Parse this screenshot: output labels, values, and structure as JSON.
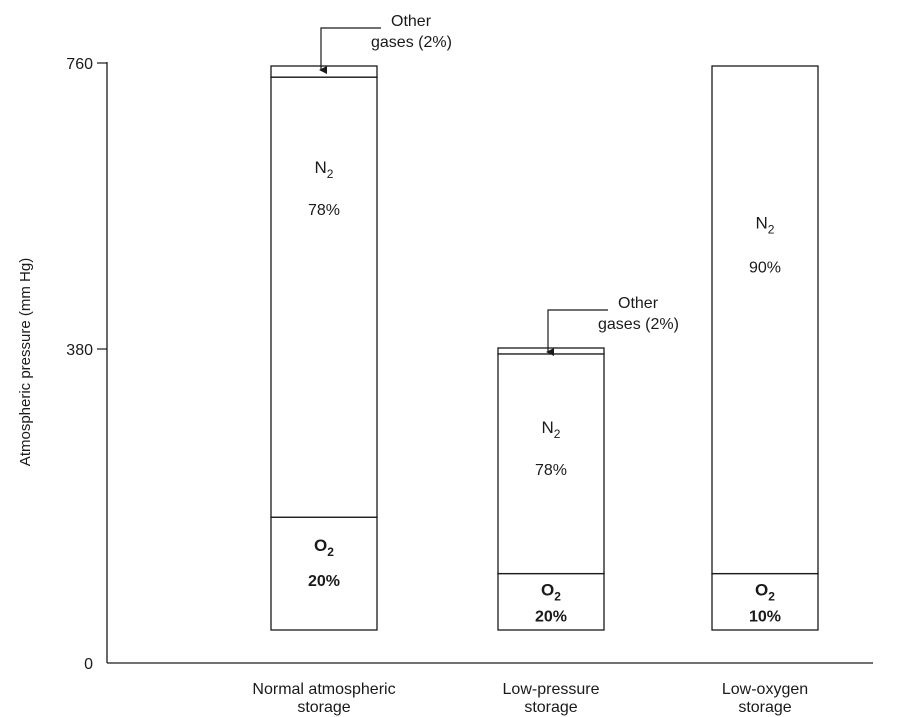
{
  "chart_data": {
    "type": "bar",
    "stacked": true,
    "ylabel": "Atmospheric pressure (mm Hg)",
    "xlabel": "",
    "ylim": [
      0,
      760
    ],
    "yticks": [
      "0",
      "380",
      "760"
    ],
    "grid": false,
    "categories": [
      [
        "Normal atmospheric",
        "storage"
      ],
      [
        "Low-pressure",
        "storage"
      ],
      [
        "Low-oxygen",
        "storage"
      ]
    ],
    "bars": [
      {
        "total": 760,
        "segments": [
          {
            "gas": "O",
            "sub": "2",
            "percent": "20%",
            "value": 152
          },
          {
            "gas": "N",
            "sub": "2",
            "percent": "78%",
            "value": 593
          },
          {
            "gas": "Other",
            "sub": "",
            "percent": "2%",
            "value": 15
          }
        ],
        "callout": [
          "Other",
          "gases (2%)"
        ]
      },
      {
        "total": 380,
        "segments": [
          {
            "gas": "O",
            "sub": "2",
            "percent": "20%",
            "value": 76
          },
          {
            "gas": "N",
            "sub": "2",
            "percent": "78%",
            "value": 296
          },
          {
            "gas": "Other",
            "sub": "",
            "percent": "2%",
            "value": 8
          }
        ],
        "callout": [
          "Other",
          "gases (2%)"
        ]
      },
      {
        "total": 760,
        "segments": [
          {
            "gas": "O",
            "sub": "2",
            "percent": "10%",
            "value": 76
          },
          {
            "gas": "N",
            "sub": "2",
            "percent": "90%",
            "value": 684
          }
        ],
        "callout": null
      }
    ]
  }
}
